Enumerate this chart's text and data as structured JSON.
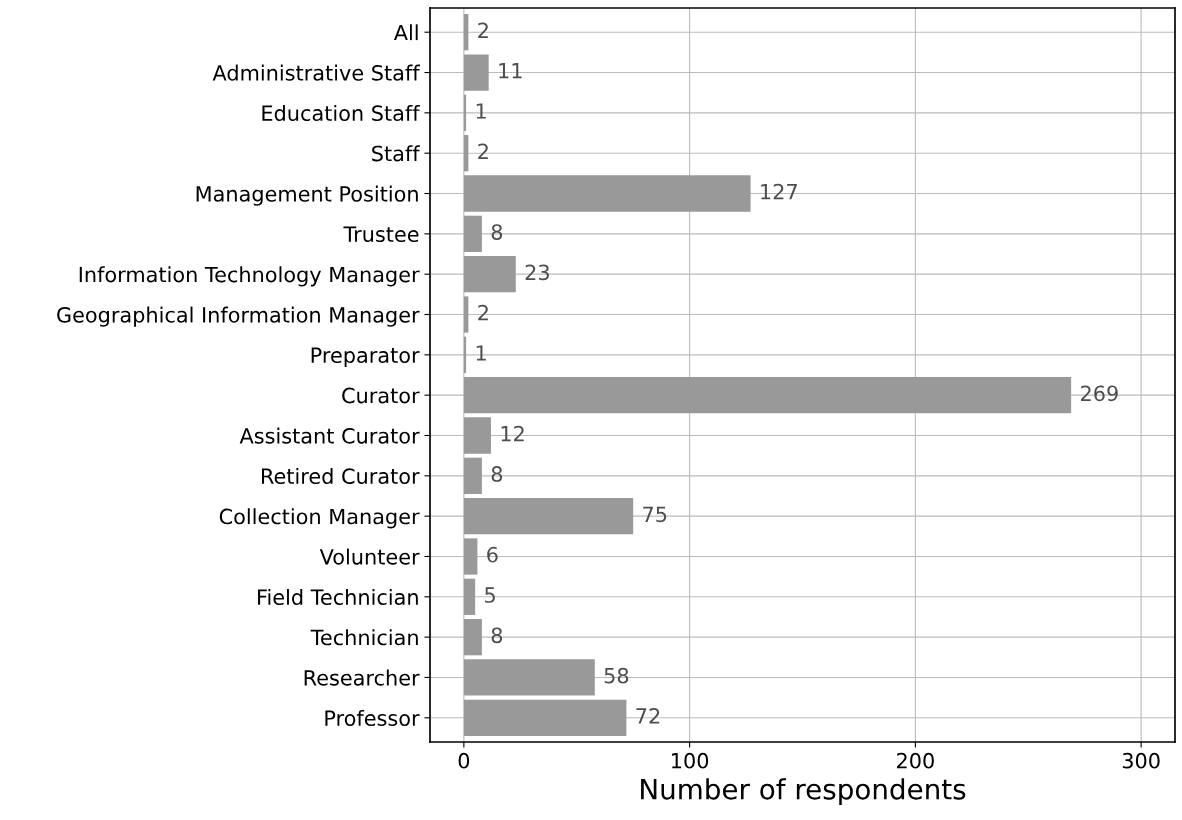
{
  "chart_data": {
    "type": "bar",
    "orientation": "horizontal",
    "xlabel": "Number of respondents",
    "categories": [
      "All",
      "Administrative Staff",
      "Education Staff",
      "Staff",
      "Management Position",
      "Trustee",
      "Information Technology Manager",
      "Geographical Information Manager",
      "Preparator",
      "Curator",
      "Assistant Curator",
      "Retired Curator",
      "Collection Manager",
      "Volunteer",
      "Field Technician",
      "Technician",
      "Researcher",
      "Professor"
    ],
    "values": [
      2,
      11,
      1,
      2,
      127,
      8,
      23,
      2,
      1,
      269,
      12,
      8,
      75,
      6,
      5,
      8,
      58,
      72
    ],
    "color": "#999999",
    "data_labels": true,
    "xlim": [
      -15,
      315
    ],
    "xticks": [
      0,
      100,
      200,
      300
    ],
    "grid": true
  }
}
